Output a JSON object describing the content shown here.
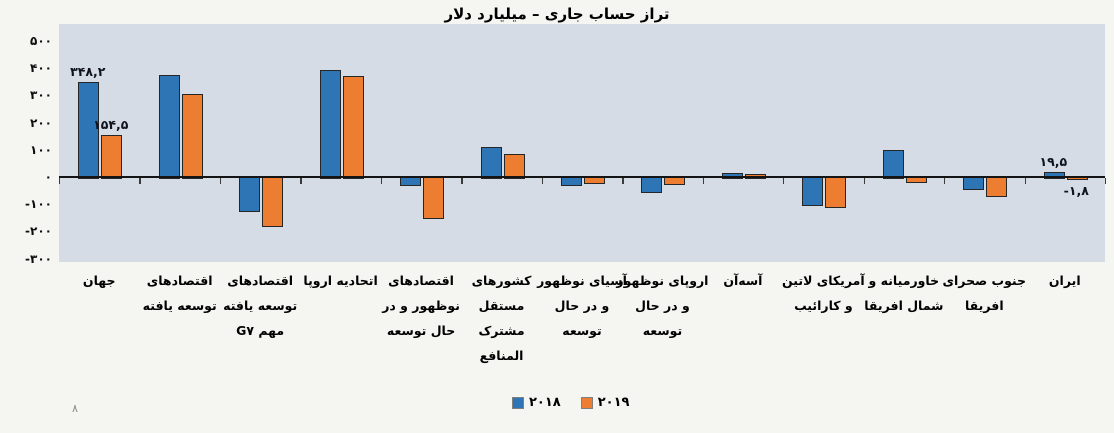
{
  "title": "تراز حساب جاری – میلیارد دلار",
  "page_number": "۸",
  "colors": {
    "series_2018": "#2e75b6",
    "series_2019": "#ed7d31",
    "bar_border": "#262626",
    "plot_background": "#d6dce5",
    "page_background": "#f5f5f2",
    "axis": "#141414",
    "text": "#000000"
  },
  "y_axis": {
    "labels": [
      {
        "text": "۵۰۰",
        "value": 500
      },
      {
        "text": "۴۰۰",
        "value": 400
      },
      {
        "text": "۳۰۰",
        "value": 300
      },
      {
        "text": "۲۰۰",
        "value": 200
      },
      {
        "text": "۱۰۰",
        "value": 100
      },
      {
        "text": "۰",
        "value": 0
      },
      {
        "text": "-۱۰۰",
        "value": -100
      },
      {
        "text": "-۲۰۰",
        "value": -200
      },
      {
        "text": "-۳۰۰",
        "value": -300
      }
    ]
  },
  "legend": {
    "items": [
      {
        "label": "۲۰۱۸",
        "color": "#2e75b6"
      },
      {
        "label": "۲۰۱۹",
        "color": "#ed7d31"
      }
    ]
  },
  "chart_data": {
    "type": "bar",
    "title": "تراز حساب جاری – میلیارد دلار",
    "ylim": [
      -300,
      500
    ],
    "grid": false,
    "legend_position": "bottom",
    "categories": [
      "جهان",
      "اقتصادهای توسعه یافته",
      "اقتصادهای توسعه یافته مهم G۷",
      "اتحادیه اروپا",
      "اقتصادهای نوظهور و در حال توسعه",
      "کشورهای مستقل مشترک المنافع",
      "آسیای نوظهور و در حال توسعه",
      "اروپای نوظهور و در حال توسعه",
      "آسه‌آن",
      "آمریکای لاتین و کارائیب",
      "خاورمیانه و شمال افریقا",
      "جنوب صحرای افریقا",
      "ایران"
    ],
    "categories_display": [
      [
        "جهان"
      ],
      [
        "اقتصادهای",
        "توسعه یافته"
      ],
      [
        "اقتصادهای",
        "توسعه یافته",
        "مهم G۷"
      ],
      [
        "اتحادیه اروپا"
      ],
      [
        "اقتصادهای",
        "نوظهور و در",
        "حال توسعه"
      ],
      [
        "کشورهای",
        "مستقل",
        "مشترک",
        "المنافع"
      ],
      [
        "آسیای نوظهور",
        "و در حال",
        "توسعه"
      ],
      [
        "اروپای نوظهور",
        "و در حال",
        "توسعه"
      ],
      [
        "آسه‌آن"
      ],
      [
        "آمریکای لاتین",
        "و کارائیب"
      ],
      [
        "خاورمیانه و",
        "شمال افریقا"
      ],
      [
        "جنوب صحرای",
        "افریقا"
      ],
      [
        "ایران"
      ]
    ],
    "series": [
      {
        "name": "۲۰۱۸",
        "color": "#2e75b6",
        "values": [
          348.2,
          375,
          -121,
          394,
          -27,
          112,
          -25,
          -51,
          13,
          -101,
          100,
          -42,
          19.5
        ]
      },
      {
        "name": "۲۰۱۹",
        "color": "#ed7d31",
        "values": [
          154.5,
          305,
          -177,
          370,
          -147,
          86,
          -18,
          -23,
          12,
          -107,
          -16,
          -66,
          -1.8
        ]
      }
    ],
    "data_labels": [
      {
        "category_index": 0,
        "series_index": 0,
        "text": "۳۴۸,۲",
        "position": "above"
      },
      {
        "category_index": 0,
        "series_index": 1,
        "text": "۱۵۴,۵",
        "position": "above"
      },
      {
        "category_index": 12,
        "series_index": 0,
        "text": "۱۹,۵",
        "position": "above"
      },
      {
        "category_index": 12,
        "series_index": 1,
        "text": "-۱,۸",
        "position": "below"
      }
    ]
  }
}
